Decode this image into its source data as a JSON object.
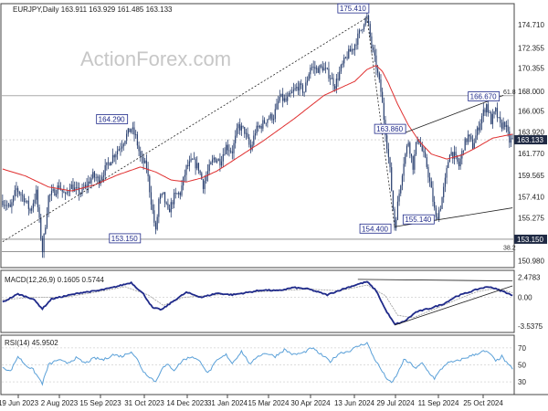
{
  "chart_data": [
    {
      "type": "candlestick",
      "title": "EURJPY,Daily  163.911 163.929 161.485 163.133",
      "watermark": "ActionForex.com",
      "x_ticks": [
        "19 Jun 2023",
        "2 Aug 2023",
        "15 Sep 2023",
        "31 Oct 2023",
        "14 Dec 2023",
        "31 Jan 2024",
        "15 Mar 2024",
        "30 Apr 2024",
        "13 Jun 2024",
        "29 Jul 2024",
        "11 Sep 2024",
        "25 Oct 2024"
      ],
      "y_ticks": [
        174.71,
        172.355,
        170.355,
        168.0,
        166.005,
        163.92,
        161.77,
        159.565,
        157.41,
        155.275,
        153.15,
        150.98
      ],
      "ylim": [
        150.3,
        176.8
      ],
      "last_price": 163.133,
      "last_price_label": "163.133",
      "ref_level_label": "153.150",
      "ref_level": 153.15,
      "fib_levels": [
        {
          "label": "61.8",
          "value": 167.55
        },
        {
          "label": "38.2",
          "value": 151.9
        }
      ],
      "annotations": [
        {
          "label": "175.410",
          "value": 175.41
        },
        {
          "label": "164.290",
          "value": 164.29
        },
        {
          "label": "153.150",
          "value": 153.15
        },
        {
          "label": "163.860",
          "value": 163.86
        },
        {
          "label": "166.670",
          "value": 166.67
        },
        {
          "label": "154.400",
          "value": 154.4
        },
        {
          "label": "155.140",
          "value": 155.14
        }
      ],
      "price_anchors": [
        [
          0,
          157.0
        ],
        [
          5,
          156.2
        ],
        [
          9,
          158.2
        ],
        [
          14,
          157.3
        ],
        [
          18,
          156.0
        ],
        [
          22,
          157.8
        ],
        [
          26,
          152.0
        ],
        [
          30,
          157.4
        ],
        [
          33,
          157.8
        ],
        [
          37,
          158.5
        ],
        [
          41,
          157.4
        ],
        [
          44,
          158.6
        ],
        [
          48,
          158.0
        ],
        [
          51,
          157.8
        ],
        [
          55,
          158.6
        ],
        [
          59,
          159.5
        ],
        [
          63,
          159.1
        ],
        [
          67,
          160.2
        ],
        [
          72,
          161.5
        ],
        [
          77,
          162.5
        ],
        [
          81,
          163.6
        ],
        [
          84,
          164.29
        ],
        [
          87,
          163.4
        ],
        [
          90,
          161.3
        ],
        [
          94,
          160.4
        ],
        [
          97,
          157.0
        ],
        [
          100,
          153.8
        ],
        [
          102,
          157.1
        ],
        [
          105,
          157.5
        ],
        [
          108,
          155.8
        ],
        [
          112,
          157.4
        ],
        [
          116,
          157.8
        ],
        [
          120,
          160.3
        ],
        [
          124,
          161.0
        ],
        [
          128,
          160.3
        ],
        [
          131,
          158.6
        ],
        [
          134,
          159.9
        ],
        [
          138,
          161.3
        ],
        [
          142,
          161.0
        ],
        [
          146,
          162.5
        ],
        [
          150,
          162.0
        ],
        [
          154,
          164.5
        ],
        [
          158,
          164.0
        ],
        [
          162,
          162.1
        ],
        [
          165,
          164.0
        ],
        [
          169,
          164.6
        ],
        [
          173,
          165.3
        ],
        [
          177,
          165.5
        ],
        [
          181,
          167.4
        ],
        [
          185,
          167.0
        ],
        [
          189,
          167.8
        ],
        [
          193,
          168.5
        ],
        [
          197,
          168.0
        ],
        [
          201,
          170.5
        ],
        [
          205,
          170.2
        ],
        [
          209,
          170.4
        ],
        [
          213,
          169.7
        ],
        [
          217,
          168.6
        ],
        [
          221,
          170.3
        ],
        [
          225,
          171.6
        ],
        [
          229,
          172.4
        ],
        [
          233,
          173.8
        ],
        [
          236,
          175.0
        ],
        [
          238,
          175.41
        ],
        [
          241,
          172.5
        ],
        [
          244,
          170.5
        ],
        [
          247,
          168.0
        ],
        [
          250,
          164.0
        ],
        [
          253,
          160.0
        ],
        [
          256,
          154.4
        ],
        [
          259,
          157.8
        ],
        [
          262,
          161.0
        ],
        [
          265,
          163.0
        ],
        [
          268,
          160.5
        ],
        [
          271,
          163.5
        ],
        [
          274,
          162.0
        ],
        [
          277,
          160.5
        ],
        [
          280,
          158.0
        ],
        [
          283,
          155.14
        ],
        [
          286,
          156.5
        ],
        [
          289,
          159.0
        ],
        [
          292,
          162.0
        ],
        [
          295,
          161.5
        ],
        [
          298,
          160.5
        ],
        [
          301,
          162.5
        ],
        [
          304,
          163.5
        ],
        [
          307,
          162.5
        ],
        [
          310,
          164.0
        ],
        [
          313,
          165.5
        ],
        [
          316,
          166.67
        ],
        [
          319,
          165.0
        ],
        [
          322,
          166.0
        ],
        [
          325,
          164.5
        ],
        [
          328,
          164.8
        ],
        [
          331,
          163.0
        ],
        [
          333,
          163.133
        ]
      ],
      "ma_anchors": [
        [
          0,
          160.2
        ],
        [
          15,
          159.5
        ],
        [
          30,
          158.4
        ],
        [
          45,
          158.0
        ],
        [
          60,
          158.6
        ],
        [
          75,
          159.6
        ],
        [
          90,
          160.4
        ],
        [
          100,
          159.9
        ],
        [
          110,
          159.1
        ],
        [
          120,
          158.9
        ],
        [
          130,
          159.3
        ],
        [
          140,
          160.0
        ],
        [
          150,
          161.0
        ],
        [
          160,
          162.0
        ],
        [
          170,
          163.0
        ],
        [
          180,
          164.1
        ],
        [
          190,
          165.2
        ],
        [
          200,
          166.4
        ],
        [
          210,
          167.6
        ],
        [
          220,
          168.3
        ],
        [
          230,
          169.0
        ],
        [
          238,
          170.2
        ],
        [
          244,
          170.6
        ],
        [
          248,
          170.0
        ],
        [
          252,
          168.8
        ],
        [
          258,
          166.7
        ],
        [
          265,
          164.6
        ],
        [
          272,
          163.0
        ],
        [
          280,
          161.7
        ],
        [
          290,
          161.2
        ],
        [
          300,
          161.6
        ],
        [
          310,
          162.4
        ],
        [
          320,
          163.3
        ],
        [
          333,
          163.7
        ]
      ],
      "trendlines": [
        {
          "from": [
            0,
            152.9
          ],
          "to": [
            238,
            175.41
          ],
          "style": "dotted"
        },
        {
          "from": [
            238,
            175.41
          ],
          "to": [
            256,
            154.4
          ],
          "style": "dotted"
        },
        {
          "from": [
            256,
            154.4
          ],
          "to": [
            333,
            156.3
          ],
          "style": "solid"
        },
        {
          "from": [
            262,
            163.8
          ],
          "to": [
            327,
            167.6
          ],
          "style": "solid"
        }
      ]
    },
    {
      "type": "line",
      "title": "MACD(12,26,9) 0.1605 0.5744",
      "y_ticks": [
        "2.4783",
        "0.00",
        "-3.5375"
      ],
      "ylim": [
        -4.3,
        3.3
      ],
      "macd_anchors": [
        [
          0,
          -0.6
        ],
        [
          10,
          0.4
        ],
        [
          20,
          -0.2
        ],
        [
          26,
          -1.4
        ],
        [
          32,
          -0.2
        ],
        [
          42,
          0.2
        ],
        [
          52,
          0.6
        ],
        [
          62,
          0.8
        ],
        [
          72,
          1.2
        ],
        [
          84,
          1.8
        ],
        [
          92,
          0.4
        ],
        [
          98,
          -1.3
        ],
        [
          104,
          -1.5
        ],
        [
          112,
          -0.4
        ],
        [
          120,
          0.6
        ],
        [
          130,
          0.0
        ],
        [
          140,
          0.5
        ],
        [
          150,
          0.3
        ],
        [
          160,
          0.6
        ],
        [
          170,
          0.9
        ],
        [
          180,
          0.8
        ],
        [
          190,
          1.2
        ],
        [
          200,
          1.0
        ],
        [
          212,
          0.3
        ],
        [
          222,
          1.0
        ],
        [
          232,
          1.6
        ],
        [
          238,
          1.9
        ],
        [
          244,
          0.8
        ],
        [
          250,
          -1.5
        ],
        [
          256,
          -3.3
        ],
        [
          262,
          -3.0
        ],
        [
          270,
          -1.8
        ],
        [
          280,
          -1.3
        ],
        [
          288,
          -0.8
        ],
        [
          296,
          0.1
        ],
        [
          304,
          0.6
        ],
        [
          312,
          1.1
        ],
        [
          318,
          1.3
        ],
        [
          324,
          0.9
        ],
        [
          330,
          0.5
        ],
        [
          333,
          0.16
        ]
      ],
      "signal_anchors": [
        [
          0,
          -0.3
        ],
        [
          20,
          0.0
        ],
        [
          40,
          0.0
        ],
        [
          60,
          0.6
        ],
        [
          80,
          1.3
        ],
        [
          95,
          0.3
        ],
        [
          105,
          -1.0
        ],
        [
          118,
          0.0
        ],
        [
          140,
          0.3
        ],
        [
          170,
          0.7
        ],
        [
          200,
          1.0
        ],
        [
          220,
          0.8
        ],
        [
          238,
          1.5
        ],
        [
          250,
          0.2
        ],
        [
          258,
          -2.2
        ],
        [
          268,
          -2.5
        ],
        [
          280,
          -1.6
        ],
        [
          295,
          -0.4
        ],
        [
          310,
          0.7
        ],
        [
          322,
          1.1
        ],
        [
          333,
          0.57
        ]
      ],
      "trendlines": [
        {
          "from": [
            232,
            2.2
          ],
          "to": [
            333,
            2.0
          ]
        },
        {
          "from": [
            256,
            -3.4
          ],
          "to": [
            333,
            1.4
          ]
        }
      ]
    },
    {
      "type": "line",
      "title": "RSI(14) 45.9502",
      "y_ticks": [
        "70",
        "50",
        "30"
      ],
      "ylim": [
        15,
        85
      ],
      "rsi_anchors": [
        [
          0,
          48
        ],
        [
          5,
          42
        ],
        [
          10,
          60
        ],
        [
          15,
          50
        ],
        [
          20,
          44
        ],
        [
          26,
          28
        ],
        [
          30,
          50
        ],
        [
          36,
          56
        ],
        [
          42,
          52
        ],
        [
          48,
          58
        ],
        [
          54,
          52
        ],
        [
          60,
          58
        ],
        [
          66,
          56
        ],
        [
          72,
          62
        ],
        [
          78,
          60
        ],
        [
          84,
          66
        ],
        [
          88,
          56
        ],
        [
          92,
          42
        ],
        [
          96,
          36
        ],
        [
          100,
          30
        ],
        [
          104,
          46
        ],
        [
          108,
          50
        ],
        [
          112,
          44
        ],
        [
          118,
          56
        ],
        [
          124,
          60
        ],
        [
          130,
          52
        ],
        [
          134,
          40
        ],
        [
          140,
          55
        ],
        [
          146,
          62
        ],
        [
          150,
          52
        ],
        [
          156,
          66
        ],
        [
          162,
          50
        ],
        [
          166,
          60
        ],
        [
          172,
          64
        ],
        [
          178,
          60
        ],
        [
          184,
          68
        ],
        [
          190,
          62
        ],
        [
          196,
          64
        ],
        [
          202,
          70
        ],
        [
          208,
          62
        ],
        [
          214,
          54
        ],
        [
          220,
          64
        ],
        [
          226,
          66
        ],
        [
          232,
          72
        ],
        [
          238,
          76
        ],
        [
          242,
          60
        ],
        [
          246,
          48
        ],
        [
          250,
          36
        ],
        [
          254,
          28
        ],
        [
          258,
          40
        ],
        [
          262,
          56
        ],
        [
          266,
          52
        ],
        [
          270,
          46
        ],
        [
          274,
          52
        ],
        [
          278,
          42
        ],
        [
          282,
          34
        ],
        [
          286,
          44
        ],
        [
          290,
          52
        ],
        [
          296,
          54
        ],
        [
          302,
          58
        ],
        [
          308,
          62
        ],
        [
          314,
          66
        ],
        [
          318,
          64
        ],
        [
          322,
          54
        ],
        [
          326,
          60
        ],
        [
          330,
          50
        ],
        [
          333,
          46
        ]
      ]
    }
  ]
}
